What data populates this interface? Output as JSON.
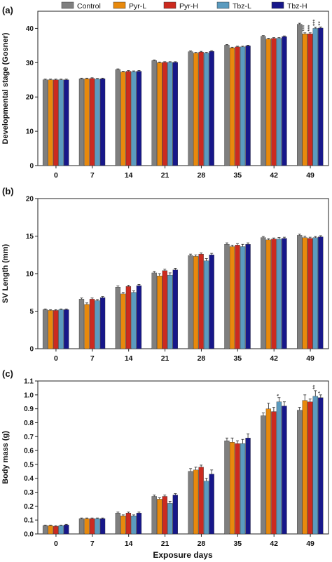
{
  "legend": [
    {
      "name": "Control",
      "color": "#7f7f7f"
    },
    {
      "name": "Pyr-L",
      "color": "#e8890c"
    },
    {
      "name": "Pyr-H",
      "color": "#cc2a1f"
    },
    {
      "name": "Tbz-L",
      "color": "#5b9bbf"
    },
    {
      "name": "Tbz-H",
      "color": "#17178a"
    }
  ],
  "xlabel": "Exposure days",
  "chart_data": [
    {
      "type": "bar",
      "panel": "(a)",
      "ylabel": "Developmental stage (Gosner)",
      "ylim": [
        0,
        45
      ],
      "yticks": [
        0,
        10,
        20,
        30,
        40
      ],
      "categories": [
        "0",
        "7",
        "14",
        "21",
        "28",
        "35",
        "42",
        "49"
      ],
      "series": [
        {
          "name": "Control",
          "values": [
            25,
            25.3,
            28,
            30.6,
            33.2,
            35.1,
            37.7,
            41.2
          ],
          "errors": [
            0.2,
            0.2,
            0.2,
            0.2,
            0.2,
            0.2,
            0.2,
            0.3
          ]
        },
        {
          "name": "Pyr-L",
          "values": [
            25,
            25.3,
            27.3,
            30,
            32.8,
            34.3,
            36.9,
            38.4
          ],
          "errors": [
            0.2,
            0.2,
            0.2,
            0.2,
            0.2,
            0.2,
            0.2,
            0.3
          ]
        },
        {
          "name": "Pyr-H",
          "values": [
            25,
            25.4,
            27.5,
            30.1,
            33.1,
            34.6,
            37.1,
            38.4
          ],
          "errors": [
            0.2,
            0.2,
            0.2,
            0.2,
            0.2,
            0.2,
            0.2,
            0.3
          ]
        },
        {
          "name": "Tbz-L",
          "values": [
            25,
            25.2,
            27.4,
            30.1,
            32.8,
            34.6,
            37.1,
            40
          ],
          "errors": [
            0.2,
            0.2,
            0.2,
            0.2,
            0.2,
            0.2,
            0.2,
            0.3
          ]
        },
        {
          "name": "Tbz-H",
          "values": [
            25,
            25.3,
            27.5,
            30.1,
            33.3,
            34.9,
            37.6,
            40.1
          ],
          "errors": [
            0.2,
            0.2,
            0.2,
            0.2,
            0.2,
            0.2,
            0.2,
            0.3
          ]
        }
      ],
      "annotations": [
        {
          "category": "49",
          "series": "Pyr-L",
          "text": "***"
        },
        {
          "category": "49",
          "series": "Pyr-H",
          "text": "***"
        },
        {
          "category": "49",
          "series": "Tbz-L",
          "text": "***"
        },
        {
          "category": "49",
          "series": "Tbz-H",
          "text": "**"
        }
      ]
    },
    {
      "type": "bar",
      "panel": "(b)",
      "ylabel": "SV Length (mm)",
      "ylim": [
        0,
        20
      ],
      "yticks": [
        0,
        5,
        10,
        15,
        20
      ],
      "categories": [
        "0",
        "7",
        "14",
        "21",
        "28",
        "35",
        "42",
        "49"
      ],
      "series": [
        {
          "name": "Control",
          "values": [
            5.2,
            6.6,
            8.2,
            10.1,
            12.4,
            13.9,
            14.8,
            15.1
          ],
          "errors": [
            0.1,
            0.15,
            0.15,
            0.2,
            0.2,
            0.2,
            0.15,
            0.15
          ]
        },
        {
          "name": "Pyr-L",
          "values": [
            5.1,
            5.9,
            7.3,
            9.7,
            12.3,
            13.6,
            14.5,
            14.8
          ],
          "errors": [
            0.1,
            0.2,
            0.2,
            0.3,
            0.2,
            0.2,
            0.15,
            0.2
          ]
        },
        {
          "name": "Pyr-H",
          "values": [
            5.1,
            6.6,
            8.3,
            10.4,
            12.6,
            13.8,
            14.6,
            14.7
          ],
          "errors": [
            0.1,
            0.15,
            0.15,
            0.2,
            0.15,
            0.2,
            0.15,
            0.15
          ]
        },
        {
          "name": "Tbz-L",
          "values": [
            5.2,
            6.4,
            7.5,
            9.8,
            11.7,
            13.6,
            14.6,
            14.8
          ],
          "errors": [
            0.1,
            0.15,
            0.2,
            0.3,
            0.3,
            0.3,
            0.2,
            0.15
          ]
        },
        {
          "name": "Tbz-H",
          "values": [
            5.2,
            6.8,
            8.4,
            10.5,
            12.5,
            13.9,
            14.7,
            14.9
          ],
          "errors": [
            0.1,
            0.15,
            0.15,
            0.2,
            0.2,
            0.2,
            0.15,
            0.15
          ]
        }
      ]
    },
    {
      "type": "bar",
      "panel": "(c)",
      "ylabel": "Body mass (g)",
      "ylim": [
        0,
        1.1
      ],
      "yticks": [
        0.0,
        0.1,
        0.2,
        0.3,
        0.4,
        0.5,
        0.6,
        0.7,
        0.8,
        0.9,
        1.0,
        1.1
      ],
      "categories": [
        "0",
        "7",
        "14",
        "21",
        "28",
        "35",
        "42",
        "49"
      ],
      "series": [
        {
          "name": "Control",
          "values": [
            0.06,
            0.11,
            0.15,
            0.27,
            0.45,
            0.67,
            0.85,
            0.89
          ],
          "errors": [
            0.004,
            0.005,
            0.007,
            0.01,
            0.02,
            0.02,
            0.02,
            0.02
          ]
        },
        {
          "name": "Pyr-L",
          "values": [
            0.06,
            0.11,
            0.13,
            0.25,
            0.46,
            0.66,
            0.9,
            0.96
          ],
          "errors": [
            0.004,
            0.005,
            0.007,
            0.01,
            0.02,
            0.03,
            0.04,
            0.04
          ]
        },
        {
          "name": "Pyr-H",
          "values": [
            0.055,
            0.11,
            0.15,
            0.27,
            0.48,
            0.65,
            0.88,
            0.95
          ],
          "errors": [
            0.004,
            0.005,
            0.007,
            0.01,
            0.015,
            0.02,
            0.03,
            0.02
          ]
        },
        {
          "name": "Tbz-L",
          "values": [
            0.06,
            0.11,
            0.13,
            0.22,
            0.38,
            0.65,
            0.95,
            0.99
          ],
          "errors": [
            0.004,
            0.005,
            0.007,
            0.015,
            0.02,
            0.03,
            0.03,
            0.04
          ]
        },
        {
          "name": "Tbz-H",
          "values": [
            0.065,
            0.11,
            0.15,
            0.28,
            0.43,
            0.69,
            0.92,
            0.98
          ],
          "errors": [
            0.004,
            0.005,
            0.007,
            0.01,
            0.03,
            0.03,
            0.03,
            0.02
          ]
        }
      ],
      "annotations": [
        {
          "category": "42",
          "series": "Tbz-L",
          "text": "*"
        },
        {
          "category": "49",
          "series": "Tbz-L",
          "text": "**"
        },
        {
          "category": "49",
          "series": "Tbz-H",
          "text": "*"
        }
      ]
    }
  ]
}
